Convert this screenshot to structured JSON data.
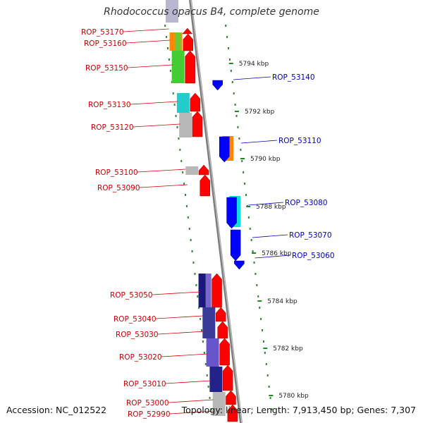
{
  "title": "Rhodococcus opacus B4, complete genome",
  "footer": {
    "accession": "Accession: NC_012522",
    "summary": "Topology: linear; Length: 7,913,450 bp; Genes: 7,307"
  },
  "colors": {
    "forward_label": "#cc0000",
    "reverse_label": "#0000bb",
    "tick": "#228822",
    "backbone": "#888888"
  },
  "scale_ticks": [
    "5794 kbp",
    "5792 kbp",
    "5790 kbp",
    "5788 kbp",
    "5786 kbp",
    "5784 kbp",
    "5782 kbp",
    "5780 kbp"
  ],
  "forward_genes": [
    {
      "label": "ROP_53170",
      "color": "#ff0000"
    },
    {
      "label": "ROP_53160",
      "color": "#ff0000"
    },
    {
      "label": "ROP_53150",
      "color": "#ff0000"
    },
    {
      "label": "ROP_53130",
      "color": "#ff0000"
    },
    {
      "label": "ROP_53120",
      "color": "#ff0000"
    },
    {
      "label": "ROP_53100",
      "color": "#ff0000"
    },
    {
      "label": "ROP_53090",
      "color": "#ff0000"
    },
    {
      "label": "ROP_53050",
      "color": "#ff0000"
    },
    {
      "label": "ROP_53040",
      "color": "#ff0000"
    },
    {
      "label": "ROP_53030",
      "color": "#ff0000"
    },
    {
      "label": "ROP_53020",
      "color": "#ff0000"
    },
    {
      "label": "ROP_53010",
      "color": "#ff0000"
    },
    {
      "label": "ROP_53000",
      "color": "#ff0000"
    },
    {
      "label": "ROP_52990",
      "color": "#ff0000"
    }
  ],
  "reverse_genes": [
    {
      "label": "ROP_53140",
      "color": "#0000ff"
    },
    {
      "label": "ROP_53110",
      "color": "#0000ff"
    },
    {
      "label": "ROP_53080",
      "color": "#0000ff"
    },
    {
      "label": "ROP_53070",
      "color": "#0000ff"
    },
    {
      "label": "ROP_53060",
      "color": "#0000ff"
    }
  ]
}
